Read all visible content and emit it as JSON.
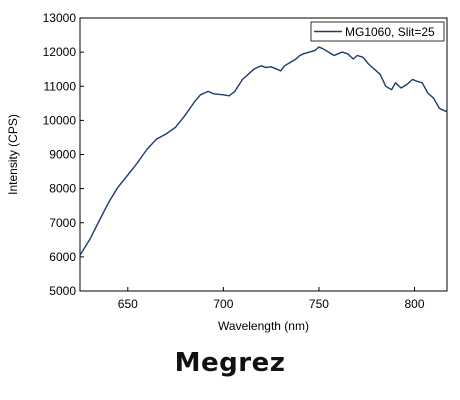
{
  "caption": "Megrez",
  "chart_data": {
    "type": "line",
    "title": "",
    "xlabel": "Wavelength (nm)",
    "ylabel": "Intensity (CPS)",
    "xlim": [
      625,
      817
    ],
    "ylim": [
      5000,
      13000
    ],
    "xticks": [
      650,
      700,
      750,
      800
    ],
    "yticks": [
      5000,
      6000,
      7000,
      8000,
      9000,
      10000,
      11000,
      12000,
      13000
    ],
    "grid": false,
    "legend_position": "top-right",
    "line_color": "#1f3a6e",
    "series": [
      {
        "name": "MG1060, Slit=25",
        "x": [
          625,
          630,
          635,
          640,
          645,
          650,
          655,
          660,
          665,
          670,
          675,
          680,
          685,
          688,
          690,
          692,
          695,
          700,
          703,
          706,
          710,
          713,
          716,
          718,
          720,
          722,
          725,
          728,
          730,
          732,
          735,
          738,
          740,
          742,
          745,
          748,
          750,
          752,
          755,
          758,
          760,
          762,
          765,
          768,
          770,
          773,
          776,
          779,
          782,
          785,
          788,
          790,
          793,
          796,
          799,
          801,
          804,
          807,
          810,
          813,
          817
        ],
        "y": [
          6050,
          6500,
          7050,
          7600,
          8050,
          8400,
          8750,
          9150,
          9450,
          9600,
          9800,
          10150,
          10550,
          10750,
          10800,
          10850,
          10780,
          10750,
          10720,
          10850,
          11200,
          11350,
          11500,
          11560,
          11600,
          11550,
          11570,
          11500,
          11450,
          11600,
          11700,
          11800,
          11900,
          11950,
          12000,
          12050,
          12150,
          12100,
          12000,
          11900,
          11950,
          12000,
          11950,
          11800,
          11900,
          11850,
          11650,
          11500,
          11350,
          11000,
          10900,
          11100,
          10950,
          11050,
          11200,
          11150,
          11100,
          10800,
          10650,
          10350,
          10250
        ]
      }
    ]
  }
}
